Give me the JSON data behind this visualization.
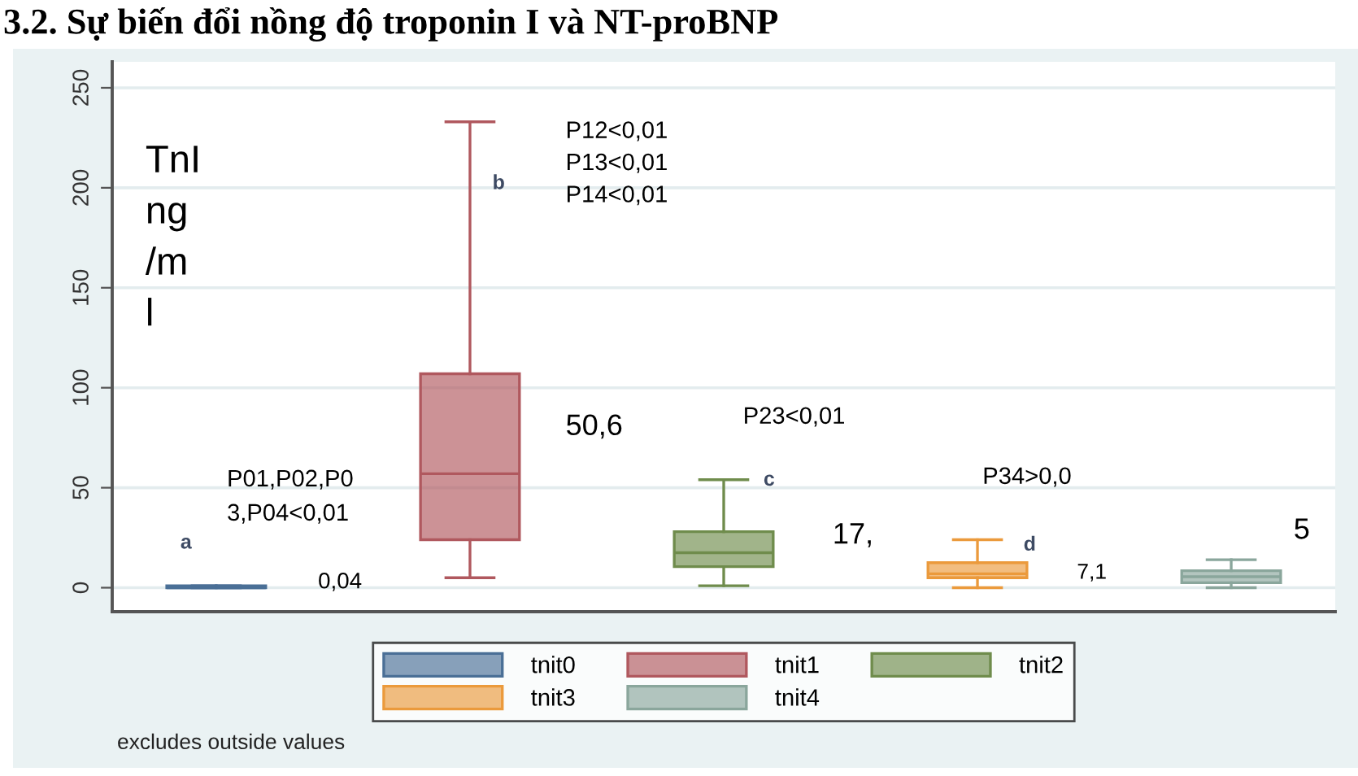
{
  "chart_data": {
    "type": "box",
    "title": "3.2. Sự biến đổi nồng độ troponin I và NT-proBNP",
    "categories": [
      null
    ],
    "series": [
      {
        "name": "tnit0",
        "color": "#4a6f96",
        "boxes": [
          {
            "low": 0,
            "q1": 0,
            "median": 0,
            "q3": 1,
            "high": 1
          }
        ]
      },
      {
        "name": "tnit1",
        "color": "#b0585e",
        "boxes": [
          {
            "low": 5,
            "q1": 24,
            "median": 57,
            "q3": 107,
            "high": 233
          }
        ]
      },
      {
        "name": "tnit2",
        "color": "#6f8c4c",
        "boxes": [
          {
            "low": 1,
            "q1": 10.5,
            "median": 17.5,
            "q3": 28,
            "high": 54
          }
        ]
      },
      {
        "name": "tnit3",
        "color": "#eb9a3c",
        "boxes": [
          {
            "low": 0,
            "q1": 5,
            "median": 7,
            "q3": 12.5,
            "high": 24
          }
        ]
      },
      {
        "name": "tnit4",
        "color": "#8aa69c",
        "boxes": [
          {
            "low": 0,
            "q1": 2.5,
            "median": 5.5,
            "q3": 8.5,
            "high": 14
          }
        ]
      }
    ],
    "ylim": [
      -12,
      263
    ],
    "yticks": [
      0,
      50,
      100,
      150,
      200,
      250
    ],
    "grid": "y",
    "legend": "bottom",
    "annotations": [
      "TnI\nng\n/m\nl",
      "P12<0,01\nP13<0,01\nP14<0,01",
      "b",
      "50,6",
      "P23<0,01",
      "P01,P02,P0\n3,P04<0,01",
      "c",
      "P34>0,0",
      "a",
      "17,",
      "5",
      "d",
      "7,1",
      "0,04",
      "excludes outside values"
    ]
  }
}
